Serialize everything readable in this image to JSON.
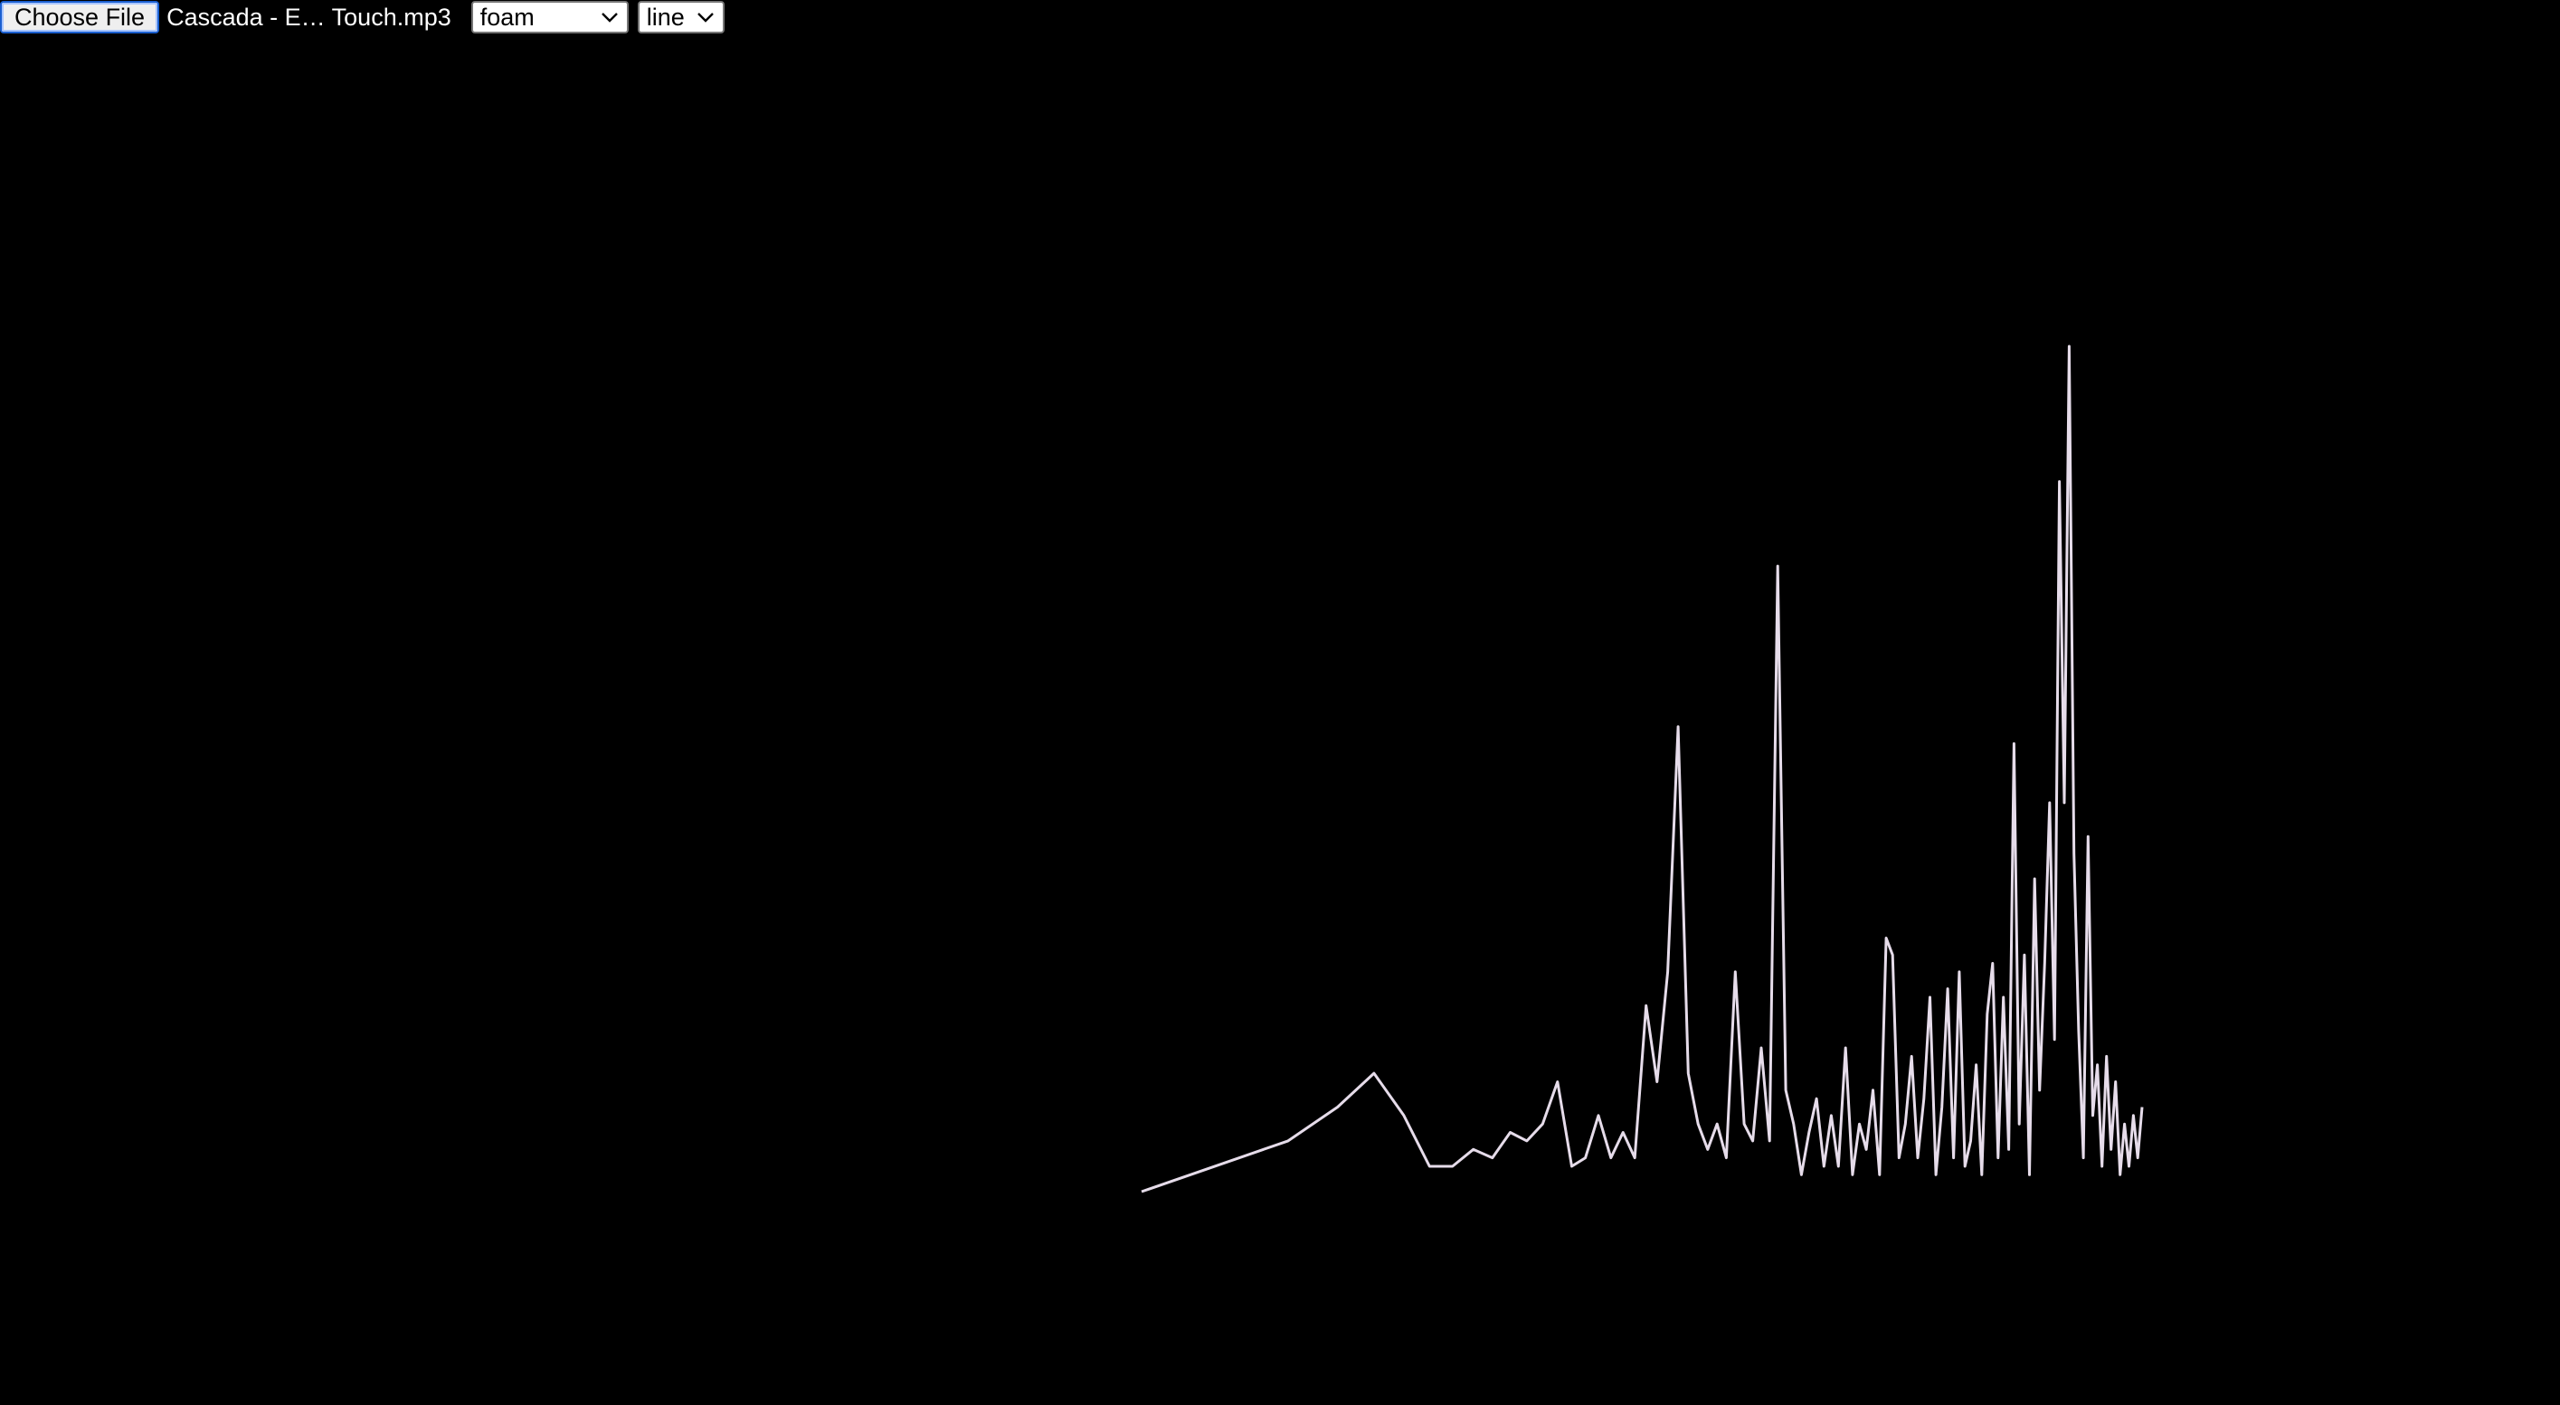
{
  "toolbar": {
    "file_button_label": "Choose File",
    "file_name": "Cascada - E… Touch.mp3",
    "mode_select": {
      "selected": "foam",
      "icon": "chevron-down-icon"
    },
    "style_select": {
      "selected": "line",
      "icon": "chevron-down-icon"
    }
  },
  "visualizer": {
    "background": "#000000",
    "stroke_color": "#e6dcea",
    "spectrum_levels": [
      0.0,
      0.06,
      0.1,
      0.14,
      0.09,
      0.03,
      0.03,
      0.05,
      0.04,
      0.07,
      0.06,
      0.08,
      0.13,
      0.03,
      0.04,
      0.09,
      0.04,
      0.07,
      0.04,
      0.22,
      0.13,
      0.26,
      0.55,
      0.14,
      0.08,
      0.05,
      0.08,
      0.04,
      0.26,
      0.08,
      0.06,
      0.17,
      0.06,
      0.74,
      0.12,
      0.08,
      0.02,
      0.07,
      0.11,
      0.03,
      0.09,
      0.03,
      0.17,
      0.02,
      0.08,
      0.05,
      0.12,
      0.02,
      0.3,
      0.28,
      0.04,
      0.08,
      0.16,
      0.04,
      0.11,
      0.23,
      0.02,
      0.1,
      0.24,
      0.04,
      0.26,
      0.03,
      0.06,
      0.15,
      0.02,
      0.21,
      0.27,
      0.04,
      0.23,
      0.05,
      0.53,
      0.08,
      0.28,
      0.02,
      0.37,
      0.12,
      0.27,
      0.46,
      0.18,
      0.84,
      0.46,
      1.0,
      0.4,
      0.19,
      0.04,
      0.42,
      0.09,
      0.15,
      0.03,
      0.16,
      0.05,
      0.13,
      0.02,
      0.08,
      0.03,
      0.09,
      0.04,
      0.1
    ]
  }
}
